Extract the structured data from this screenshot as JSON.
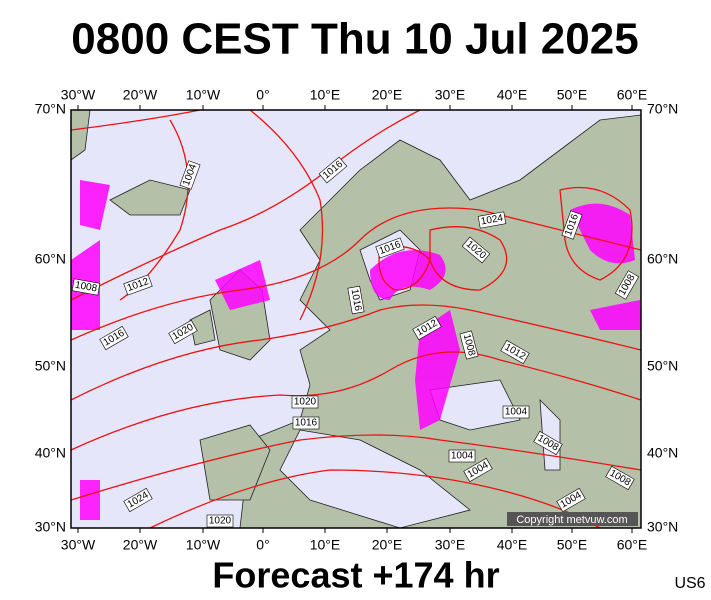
{
  "header": {
    "title": "0800 CEST Thu 10 Jul 2025"
  },
  "axes": {
    "longitudes": [
      "30°W",
      "20°W",
      "10°W",
      "0°",
      "10°E",
      "20°E",
      "30°E",
      "40°E",
      "50°E",
      "60°E"
    ],
    "latitudes": [
      "70°N",
      "60°N",
      "50°N",
      "40°N",
      "30°N"
    ]
  },
  "isobar_labels": [
    "1004",
    "1016",
    "1024",
    "1020",
    "1016",
    "1016",
    "1008",
    "1012",
    "1016",
    "1020",
    "1016",
    "1012",
    "1008",
    "1012",
    "1004",
    "1020",
    "1016",
    "1004",
    "1004",
    "1008",
    "1008",
    "1004",
    "1024",
    "1020",
    "1008"
  ],
  "copyright": "Copyright metvuw.com",
  "footer": {
    "forecast": "Forecast +174 hr",
    "code": "US6"
  }
}
